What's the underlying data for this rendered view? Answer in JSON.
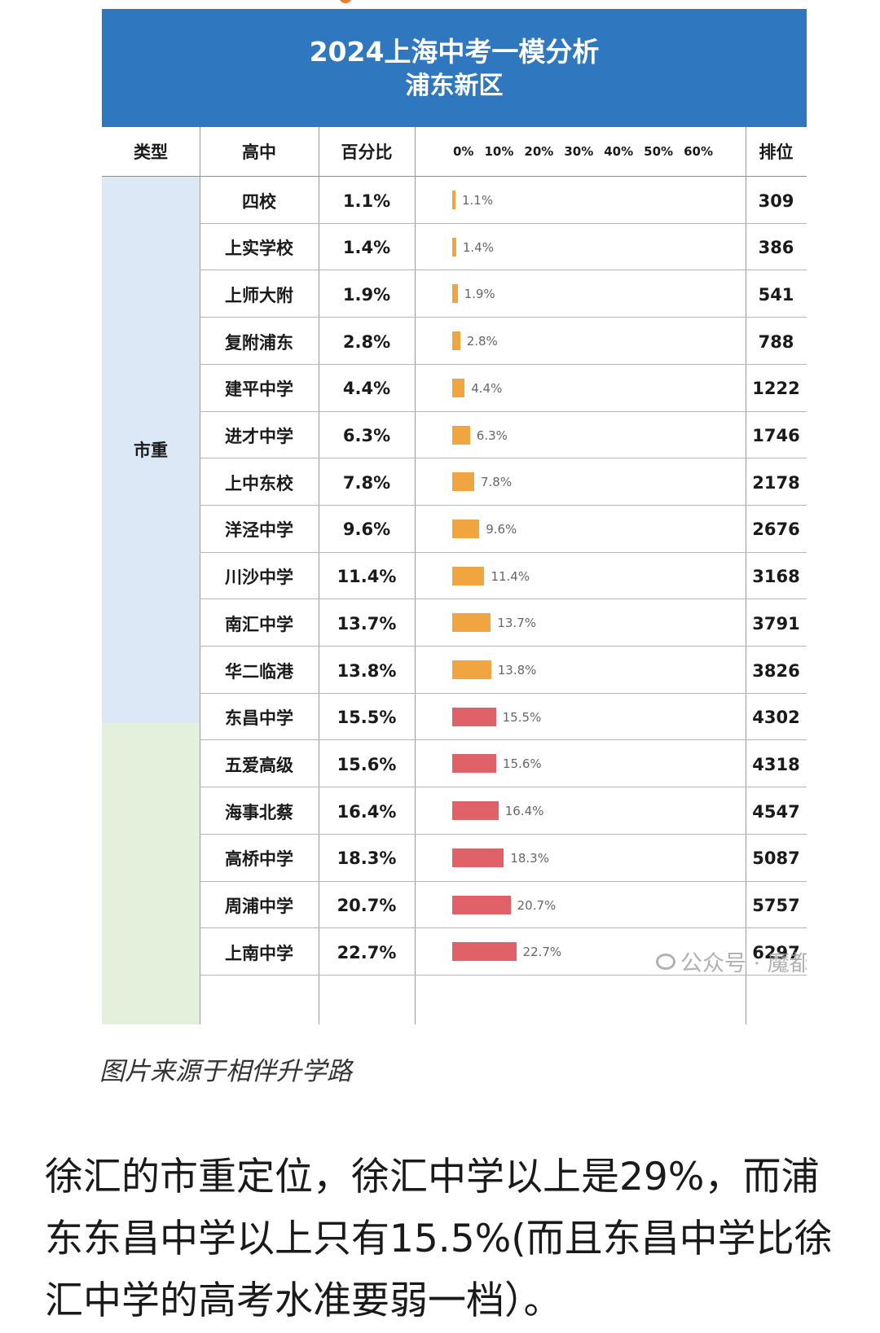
{
  "header": {
    "title_line1": "2024上海中考一模分析",
    "title_line2": "浦东新区"
  },
  "columns": {
    "type": "类型",
    "school": "高中",
    "percent": "百分比",
    "rank": "排位",
    "scale_ticks": [
      "0%",
      "10%",
      "20%",
      "30%",
      "40%",
      "50%",
      "60%"
    ]
  },
  "type_label": "市重",
  "colors": {
    "banner": "#2f78bf",
    "bar_orange": "#f0a540",
    "bar_red": "#e06268",
    "type_blue": "#dce8f5",
    "type_green": "#e4efdc"
  },
  "rows": [
    {
      "school": "四校",
      "percent": "1.1%",
      "value": 1.1,
      "rank": "309",
      "color": "#f0a540"
    },
    {
      "school": "上实学校",
      "percent": "1.4%",
      "value": 1.4,
      "rank": "386",
      "color": "#f0a540"
    },
    {
      "school": "上师大附",
      "percent": "1.9%",
      "value": 1.9,
      "rank": "541",
      "color": "#f0a540"
    },
    {
      "school": "复附浦东",
      "percent": "2.8%",
      "value": 2.8,
      "rank": "788",
      "color": "#f0a540"
    },
    {
      "school": "建平中学",
      "percent": "4.4%",
      "value": 4.4,
      "rank": "1222",
      "color": "#f0a540"
    },
    {
      "school": "进才中学",
      "percent": "6.3%",
      "value": 6.3,
      "rank": "1746",
      "color": "#f0a540"
    },
    {
      "school": "上中东校",
      "percent": "7.8%",
      "value": 7.8,
      "rank": "2178",
      "color": "#f0a540"
    },
    {
      "school": "洋泾中学",
      "percent": "9.6%",
      "value": 9.6,
      "rank": "2676",
      "color": "#f0a540"
    },
    {
      "school": "川沙中学",
      "percent": "11.4%",
      "value": 11.4,
      "rank": "3168",
      "color": "#f0a540"
    },
    {
      "school": "南汇中学",
      "percent": "13.7%",
      "value": 13.7,
      "rank": "3791",
      "color": "#f0a540"
    },
    {
      "school": "华二临港",
      "percent": "13.8%",
      "value": 13.8,
      "rank": "3826",
      "color": "#f0a540"
    },
    {
      "school": "东昌中学",
      "percent": "15.5%",
      "value": 15.5,
      "rank": "4302",
      "color": "#e06268"
    },
    {
      "school": "五爱高级",
      "percent": "15.6%",
      "value": 15.6,
      "rank": "4318",
      "color": "#e06268"
    },
    {
      "school": "海事北蔡",
      "percent": "16.4%",
      "value": 16.4,
      "rank": "4547",
      "color": "#e06268"
    },
    {
      "school": "高桥中学",
      "percent": "18.3%",
      "value": 18.3,
      "rank": "5087",
      "color": "#e06268"
    },
    {
      "school": "周浦中学",
      "percent": "20.7%",
      "value": 20.7,
      "rank": "5757",
      "color": "#e06268"
    },
    {
      "school": "上南中学",
      "percent": "22.7%",
      "value": 22.7,
      "rank": "6297",
      "color": "#e06268"
    }
  ],
  "watermark": "公众号 · 魔都买房观察",
  "caption": "图片来源于相伴升学路",
  "paragraph": "徐汇的市重定位，徐汇中学以上是29%，而浦东东昌中学以上只有15.5%(而且东昌中学比徐汇中学的高考水准要弱一档）。"
}
